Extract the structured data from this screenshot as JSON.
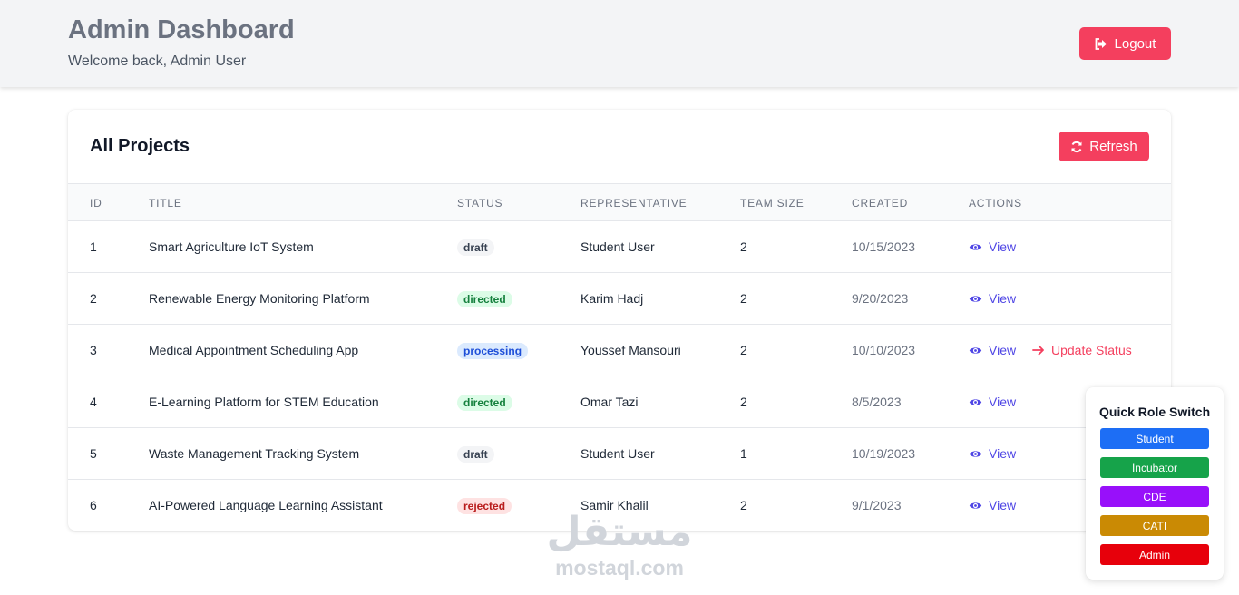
{
  "header": {
    "title": "Admin Dashboard",
    "subtitle": "Welcome back, Admin User",
    "logout_label": "Logout"
  },
  "projects": {
    "title": "All Projects",
    "refresh_label": "Refresh",
    "columns": [
      "ID",
      "TITLE",
      "STATUS",
      "REPRESENTATIVE",
      "TEAM SIZE",
      "CREATED",
      "ACTIONS"
    ],
    "rows": [
      {
        "id": "1",
        "title": "Smart Agriculture IoT System",
        "status": "draft",
        "representative": "Student User",
        "team_size": "2",
        "created": "10/15/2023",
        "actions": [
          "View"
        ]
      },
      {
        "id": "2",
        "title": "Renewable Energy Monitoring Platform",
        "status": "directed",
        "representative": "Karim Hadj",
        "team_size": "2",
        "created": "9/20/2023",
        "actions": [
          "View"
        ]
      },
      {
        "id": "3",
        "title": "Medical Appointment Scheduling App",
        "status": "processing",
        "representative": "Youssef Mansouri",
        "team_size": "2",
        "created": "10/10/2023",
        "actions": [
          "View",
          "Update Status"
        ]
      },
      {
        "id": "4",
        "title": "E-Learning Platform for STEM Education",
        "status": "directed",
        "representative": "Omar Tazi",
        "team_size": "2",
        "created": "8/5/2023",
        "actions": [
          "View"
        ]
      },
      {
        "id": "5",
        "title": "Waste Management Tracking System",
        "status": "draft",
        "representative": "Student User",
        "team_size": "1",
        "created": "10/19/2023",
        "actions": [
          "View"
        ]
      },
      {
        "id": "6",
        "title": "AI-Powered Language Learning Assistant",
        "status": "rejected",
        "representative": "Samir Khalil",
        "team_size": "2",
        "created": "9/1/2023",
        "actions": [
          "View"
        ]
      }
    ]
  },
  "role_switch": {
    "title": "Quick Role Switch",
    "roles": [
      {
        "label": "Student",
        "color": "#1d6ef5"
      },
      {
        "label": "Incubator",
        "color": "#16a34a"
      },
      {
        "label": "CDE",
        "color": "#9810fa"
      },
      {
        "label": "CATI",
        "color": "#ca8a04"
      },
      {
        "label": "Admin",
        "color": "#e7000b"
      }
    ]
  },
  "watermark": {
    "arabic": "مستقل",
    "latin": "mostaql.com"
  },
  "icons": {
    "logout": "sign-out-icon",
    "refresh": "sync-icon",
    "view": "eye-icon",
    "update": "arrow-right-icon"
  },
  "colors": {
    "accent": "#f43f5e",
    "link": "#4f46e5"
  }
}
